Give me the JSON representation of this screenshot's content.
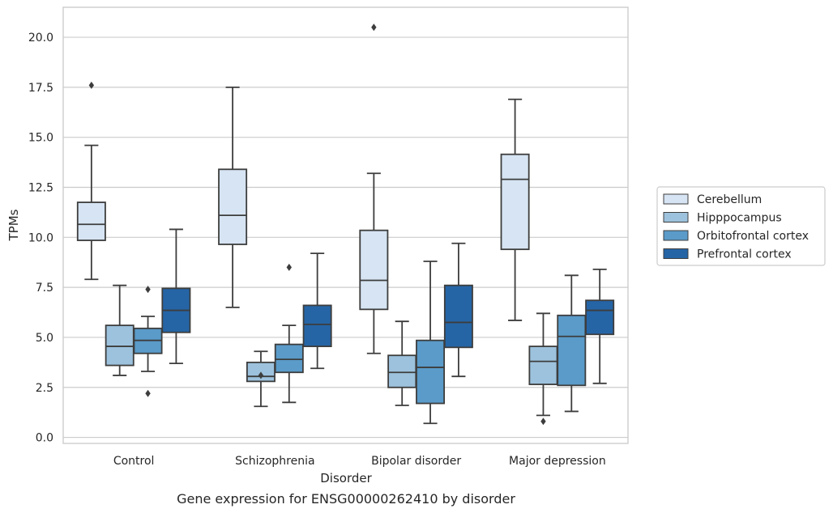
{
  "chart_data": {
    "type": "boxplot",
    "caption": "Gene expression for ENSG00000262410 by disorder",
    "xlabel": "Disorder",
    "ylabel": "TPMs",
    "ylim": [
      -0.3,
      21.5
    ],
    "yticks": [
      0.0,
      2.5,
      5.0,
      7.5,
      10.0,
      12.5,
      15.0,
      17.5,
      20.0
    ],
    "ytick_labels": [
      "0.0",
      "2.5",
      "5.0",
      "7.5",
      "10.0",
      "12.5",
      "15.0",
      "17.5",
      "20.0"
    ],
    "grid": "horizontal",
    "legend_position": "right",
    "categories": [
      "Control",
      "Schizophrenia",
      "Bipolar disorder",
      "Major depression"
    ],
    "series": [
      {
        "name": "Cerebellum",
        "color": "#d6e4f3",
        "boxes": [
          {
            "whislo": 7.9,
            "q1": 9.85,
            "med": 10.65,
            "q3": 11.75,
            "whishi": 14.6,
            "fliers": [
              17.6
            ]
          },
          {
            "whislo": 6.5,
            "q1": 9.65,
            "med": 11.1,
            "q3": 13.4,
            "whishi": 17.5,
            "fliers": []
          },
          {
            "whislo": 4.2,
            "q1": 6.4,
            "med": 7.85,
            "q3": 10.35,
            "whishi": 13.2,
            "fliers": [
              20.5
            ]
          },
          {
            "whislo": 5.85,
            "q1": 9.4,
            "med": 12.9,
            "q3": 14.15,
            "whishi": 16.9,
            "fliers": []
          }
        ]
      },
      {
        "name": "Hipppocampus",
        "color": "#9dc2dd",
        "boxes": [
          {
            "whislo": 3.1,
            "q1": 3.6,
            "med": 4.55,
            "q3": 5.6,
            "whishi": 7.6,
            "fliers": []
          },
          {
            "whislo": 1.55,
            "q1": 2.8,
            "med": 3.05,
            "q3": 3.75,
            "whishi": 4.3,
            "fliers": [
              3.1
            ]
          },
          {
            "whislo": 1.6,
            "q1": 2.5,
            "med": 3.25,
            "q3": 4.1,
            "whishi": 5.8,
            "fliers": []
          },
          {
            "whislo": 1.1,
            "q1": 2.65,
            "med": 3.8,
            "q3": 4.55,
            "whishi": 6.2,
            "fliers": [
              0.8
            ]
          }
        ]
      },
      {
        "name": "Orbitofrontal cortex",
        "color": "#5a9bc9",
        "boxes": [
          {
            "whislo": 3.3,
            "q1": 4.2,
            "med": 4.85,
            "q3": 5.45,
            "whishi": 6.05,
            "fliers": [
              7.4,
              2.2
            ]
          },
          {
            "whislo": 1.75,
            "q1": 3.25,
            "med": 3.9,
            "q3": 4.65,
            "whishi": 5.6,
            "fliers": [
              8.5
            ]
          },
          {
            "whislo": 0.7,
            "q1": 1.7,
            "med": 3.5,
            "q3": 4.85,
            "whishi": 8.8,
            "fliers": []
          },
          {
            "whislo": 1.3,
            "q1": 2.6,
            "med": 5.05,
            "q3": 6.1,
            "whishi": 8.1,
            "fliers": []
          }
        ]
      },
      {
        "name": "Prefrontal cortex",
        "color": "#2565a6",
        "boxes": [
          {
            "whislo": 3.7,
            "q1": 5.25,
            "med": 6.35,
            "q3": 7.45,
            "whishi": 10.4,
            "fliers": []
          },
          {
            "whislo": 3.45,
            "q1": 4.55,
            "med": 5.65,
            "q3": 6.6,
            "whishi": 9.2,
            "fliers": []
          },
          {
            "whislo": 3.05,
            "q1": 4.5,
            "med": 5.75,
            "q3": 7.6,
            "whishi": 9.7,
            "fliers": []
          },
          {
            "whislo": 2.7,
            "q1": 5.15,
            "med": 6.35,
            "q3": 6.85,
            "whishi": 8.4,
            "fliers": []
          }
        ]
      }
    ]
  }
}
